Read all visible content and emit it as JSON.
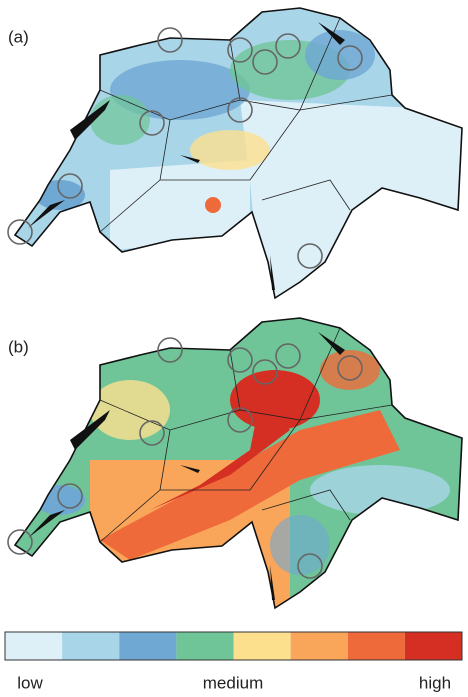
{
  "panels": [
    {
      "label": "(a)"
    },
    {
      "label": "(b)"
    }
  ],
  "legend": {
    "colors": [
      "#def0f7",
      "#a9d5e9",
      "#6fa8d3",
      "#6fc597",
      "#fde08e",
      "#f9a65a",
      "#ef6a3a",
      "#d42f22"
    ],
    "labels": [
      "low",
      "medium",
      "high"
    ]
  }
}
